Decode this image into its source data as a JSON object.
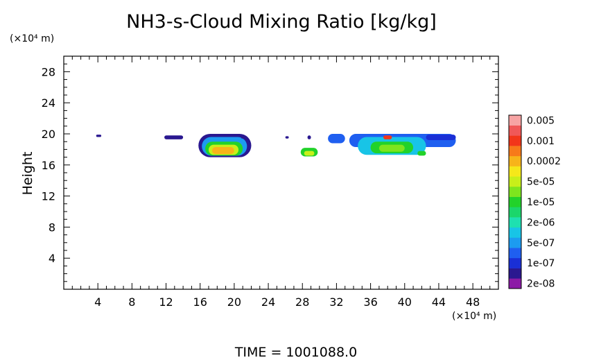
{
  "chart_data": {
    "type": "heatmap",
    "title": "NH3-s-Cloud Mixing Ratio [kg/kg]",
    "ylabel": "Height",
    "x_unit_label": "(×10⁴ m)",
    "y_unit_label": "(×10⁴ m)",
    "time_label": "TIME  =  1001088.0",
    "xlim": [
      0,
      51
    ],
    "ylim": [
      0,
      30
    ],
    "x_ticks": [
      4,
      8,
      12,
      16,
      20,
      24,
      28,
      32,
      36,
      40,
      44,
      48
    ],
    "y_ticks": [
      4,
      8,
      12,
      16,
      20,
      24,
      28
    ],
    "grid": false,
    "legend_position": "right",
    "levels": [
      {
        "label": "2e-08",
        "color": "#8c1aa6"
      },
      {
        "label": "",
        "color": "#2a1890"
      },
      {
        "label": "1e-07",
        "color": "#1a2fd6"
      },
      {
        "label": "",
        "color": "#1f5ff0"
      },
      {
        "label": "5e-07",
        "color": "#1c9bf0"
      },
      {
        "label": "",
        "color": "#18c4e6"
      },
      {
        "label": "2e-06",
        "color": "#1ee0b0"
      },
      {
        "label": "",
        "color": "#1bd66b"
      },
      {
        "label": "1e-05",
        "color": "#22d22a"
      },
      {
        "label": "",
        "color": "#7ee51e"
      },
      {
        "label": "5e-05",
        "color": "#c8ef1a"
      },
      {
        "label": "",
        "color": "#f5e81a"
      },
      {
        "label": "0.0002",
        "color": "#f7b41a"
      },
      {
        "label": "",
        "color": "#f77a1a"
      },
      {
        "label": "0.001",
        "color": "#f2361a"
      },
      {
        "label": "",
        "color": "#f05858"
      },
      {
        "label": "0.005",
        "color": "#f7a4a4"
      }
    ],
    "regions": [
      {
        "x": [
          3.8,
          4.4
        ],
        "y": [
          19.6,
          19.9
        ],
        "level": 1
      },
      {
        "x": [
          11.8,
          14.0
        ],
        "y": [
          19.3,
          19.8
        ],
        "level": 1
      },
      {
        "x": [
          15.8,
          22.0
        ],
        "y": [
          17.0,
          20.0
        ],
        "level": 1
      },
      {
        "x": [
          16.2,
          21.5
        ],
        "y": [
          17.2,
          19.6
        ],
        "level": 4
      },
      {
        "x": [
          16.6,
          21.0
        ],
        "y": [
          17.2,
          19.0
        ],
        "level": 8
      },
      {
        "x": [
          17.0,
          20.5
        ],
        "y": [
          17.3,
          18.6
        ],
        "level": 10
      },
      {
        "x": [
          17.4,
          20.0
        ],
        "y": [
          17.4,
          18.3
        ],
        "level": 12
      },
      {
        "x": [
          20.8,
          21.2
        ],
        "y": [
          19.4,
          19.7
        ],
        "level": 1
      },
      {
        "x": [
          26.0,
          26.4
        ],
        "y": [
          19.4,
          19.7
        ],
        "level": 1
      },
      {
        "x": [
          27.8,
          29.8
        ],
        "y": [
          17.1,
          18.2
        ],
        "level": 8
      },
      {
        "x": [
          28.2,
          29.4
        ],
        "y": [
          17.2,
          17.8
        ],
        "level": 10
      },
      {
        "x": [
          28.6,
          29.0
        ],
        "y": [
          19.3,
          19.8
        ],
        "level": 1
      },
      {
        "x": [
          31.0,
          33.0
        ],
        "y": [
          18.8,
          20.0
        ],
        "level": 3
      },
      {
        "x": [
          33.5,
          46.0
        ],
        "y": [
          18.3,
          20.0
        ],
        "level": 3
      },
      {
        "x": [
          34.5,
          42.5
        ],
        "y": [
          17.3,
          19.6
        ],
        "level": 5
      },
      {
        "x": [
          36.0,
          41.0
        ],
        "y": [
          17.5,
          19.0
        ],
        "level": 8
      },
      {
        "x": [
          37.0,
          40.0
        ],
        "y": [
          17.7,
          18.6
        ],
        "level": 9
      },
      {
        "x": [
          37.5,
          38.5
        ],
        "y": [
          19.3,
          19.8
        ],
        "level": 14
      },
      {
        "x": [
          41.5,
          42.5
        ],
        "y": [
          17.2,
          17.8
        ],
        "level": 8
      },
      {
        "x": [
          42.5,
          46.0
        ],
        "y": [
          19.2,
          19.9
        ],
        "level": 2
      }
    ]
  }
}
